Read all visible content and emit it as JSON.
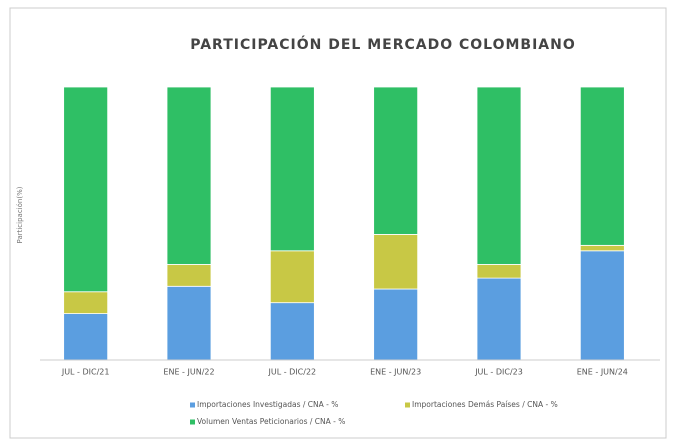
{
  "chart_data": {
    "type": "stacked_bar",
    "title": "PARTICIPACIÓN DEL MERCADO COLOMBIANO",
    "y_label": "Participación(%)",
    "categories": [
      "JUL - DIC/21",
      "ENE - JUN/22",
      "JUL - DIC/22",
      "ENE - JUN/23",
      "JUL - DIC/23",
      "ENE - JUN/24"
    ],
    "ylim": [
      0,
      100
    ],
    "series": [
      {
        "name": "Importaciones Investigadas  / CNA - %",
        "color": "#5b9ee0",
        "values": [
          17,
          27,
          21,
          26,
          30,
          40
        ]
      },
      {
        "name": "Importaciones Demás Países / CNA - %",
        "color": "#c8c845",
        "values": [
          8,
          8,
          19,
          20,
          5,
          2
        ]
      },
      {
        "name": "Volumen Ventas Peticionarios / CNA - %",
        "color": "#2fbf65",
        "values": [
          75,
          65,
          60,
          54,
          65,
          58
        ]
      }
    ]
  }
}
